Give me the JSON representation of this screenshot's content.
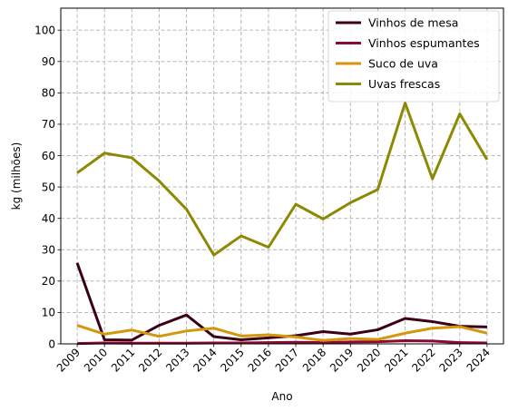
{
  "chart_data": {
    "type": "line",
    "xlabel": "Ano",
    "ylabel": "kg (milhões)",
    "x": [
      "2009",
      "2010",
      "2011",
      "2012",
      "2013",
      "2014",
      "2015",
      "2016",
      "2017",
      "2018",
      "2019",
      "2020",
      "2021",
      "2022",
      "2023",
      "2024"
    ],
    "yticks": [
      0,
      10,
      20,
      30,
      40,
      50,
      60,
      70,
      80,
      90,
      100
    ],
    "ylim": [
      0,
      107
    ],
    "grid": true,
    "legend_position": "top-right",
    "series": [
      {
        "name": "Vinhos de mesa",
        "color": "#3b0018",
        "values": [
          25.8,
          1.3,
          1.2,
          5.9,
          9.2,
          2.3,
          1.3,
          1.9,
          2.6,
          3.9,
          3.1,
          4.5,
          8.1,
          7.1,
          5.6,
          5.4
        ]
      },
      {
        "name": "Vinhos espumantes",
        "color": "#8c0a30",
        "values": [
          0.1,
          0.3,
          0.2,
          0.2,
          0.2,
          0.3,
          0.3,
          0.4,
          0.5,
          0.4,
          0.6,
          0.7,
          1.0,
          0.9,
          0.4,
          0.3
        ]
      },
      {
        "name": "Suco de uva",
        "color": "#d4960a",
        "values": [
          5.9,
          3.1,
          4.4,
          2.4,
          4.1,
          5.0,
          2.5,
          2.9,
          2.2,
          1.1,
          1.7,
          1.4,
          3.4,
          5.0,
          5.5,
          3.4
        ]
      },
      {
        "name": "Uvas frescas",
        "color": "#8c8a04",
        "values": [
          54.5,
          60.8,
          59.3,
          51.9,
          42.9,
          28.3,
          34.4,
          30.8,
          44.5,
          39.8,
          45.0,
          49.2,
          76.8,
          52.6,
          73.3,
          58.7
        ]
      }
    ]
  }
}
